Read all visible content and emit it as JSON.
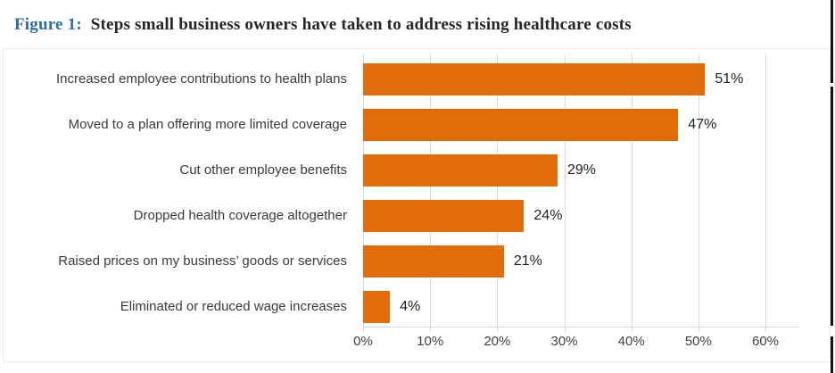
{
  "title": {
    "figure_label": "Figure 1:",
    "text": "Steps small business owners have taken to address rising healthcare costs"
  },
  "chart_data": {
    "type": "bar",
    "orientation": "horizontal",
    "title": "Steps small business owners have taken to address rising healthcare costs",
    "categories": [
      "Increased employee contributions to health plans",
      "Moved to a plan offering more limited coverage",
      "Cut other employee benefits",
      "Dropped health coverage altogether",
      "Raised prices on my business’ goods or services",
      "Eliminated or reduced wage increases"
    ],
    "values": [
      51,
      47,
      29,
      24,
      21,
      4
    ],
    "value_labels": [
      "51%",
      "47%",
      "29%",
      "24%",
      "21%",
      "4%"
    ],
    "x_ticks": [
      "0%",
      "10%",
      "20%",
      "30%",
      "40%",
      "50%",
      "60%"
    ],
    "x_tick_values": [
      0,
      10,
      20,
      30,
      40,
      50,
      60
    ],
    "xlim": [
      0,
      60
    ],
    "xlabel": "",
    "ylabel": "",
    "grid": true,
    "legend": "none",
    "bar_color": "#e16c0a",
    "gridline_color": "#d9d9d9",
    "tick_label_color": "#3f3f3f",
    "category_label_color": "#3a3a3a",
    "value_label_color": "#1f1f1f",
    "figure_label_color": "#2e6f9e"
  }
}
